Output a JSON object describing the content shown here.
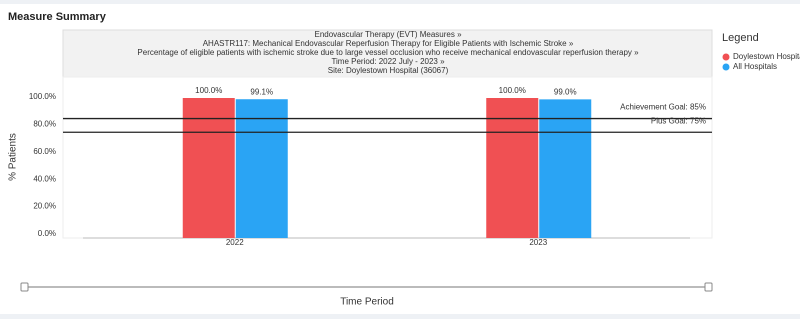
{
  "page_title": "Measure Summary",
  "chart_data": {
    "type": "bar",
    "header": [
      "Endovascular Therapy (EVT) Measures »",
      "AHASTR117: Mechanical Endovascular Reperfusion Therapy for Eligible Patients with Ischemic Stroke »",
      "Percentage of eligible patients with ischemic stroke due to large vessel occlusion who receive mechanical endovascular reperfusion therapy »",
      "Time Period: 2022 July - 2023 »",
      "Site: Doylestown Hospital (36067)"
    ],
    "y_label": "% Patients",
    "x_label": "Time Period",
    "legend_title": "Legend",
    "categories": [
      "2022",
      "2023"
    ],
    "series": [
      {
        "name": "Doylestown Hospital",
        "color": "#f05053",
        "values": [
          100,
          100
        ],
        "value_labels": [
          "100.0%",
          "100.0%"
        ]
      },
      {
        "name": "All Hospitals",
        "color": "#2aa4f4",
        "values": [
          99.1,
          99.0
        ],
        "value_labels": [
          "99.1%",
          "99.0%"
        ]
      }
    ],
    "goals": [
      {
        "label": "Achievement Goal: 85%",
        "value": 85
      },
      {
        "label": "Plus Goal: 75%",
        "value": 75
      }
    ],
    "ylim": [
      0,
      100
    ],
    "yticks": [
      {
        "value": 0,
        "label": "0.0%"
      },
      {
        "value": 20,
        "label": "20.0%"
      },
      {
        "value": 40,
        "label": "40.0%"
      },
      {
        "value": 60,
        "label": "60.0%"
      },
      {
        "value": 80,
        "label": "80.0%"
      },
      {
        "value": 100,
        "label": "100.0%"
      }
    ]
  }
}
